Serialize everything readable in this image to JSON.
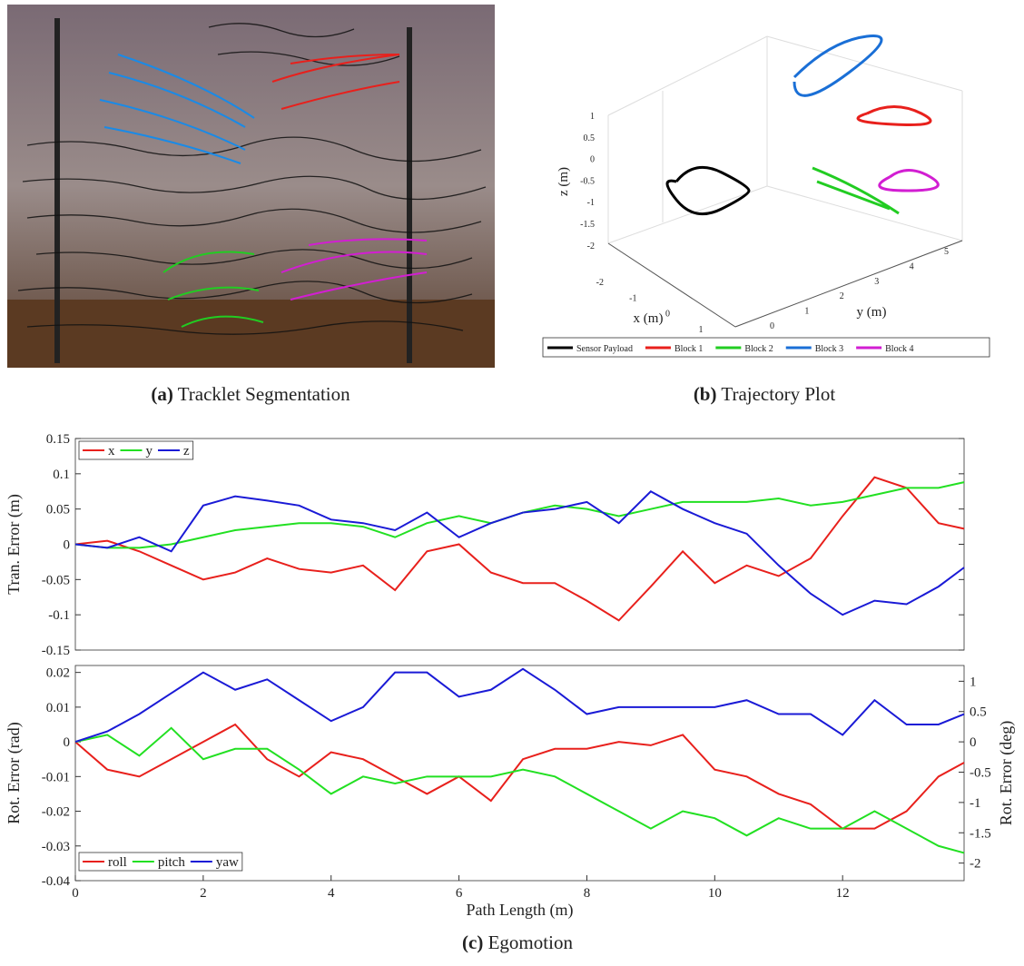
{
  "captions": [
    {
      "label": "(a)",
      "text": "Tracklet Segmentation"
    },
    {
      "label": "(b)",
      "text": "Trajectory Plot"
    },
    {
      "label": "(c)",
      "text": "Egomotion"
    }
  ],
  "chart_data": [
    {
      "type": "line3d",
      "xlabel": "x (m)",
      "ylabel": "y (m)",
      "zlabel": "z (m)",
      "xticks": [
        -2,
        -1,
        0,
        1
      ],
      "yticks": [
        0,
        1,
        2,
        3,
        4,
        5
      ],
      "zticks": [
        1,
        0.5,
        0,
        -0.5,
        -1,
        -1.5,
        -2
      ],
      "legend": "bottom",
      "series": [
        {
          "name": "Sensor Payload",
          "color": "#000000"
        },
        {
          "name": "Block 1",
          "color": "#e8201c"
        },
        {
          "name": "Block 2",
          "color": "#22cc22"
        },
        {
          "name": "Block 3",
          "color": "#1a6fd6"
        },
        {
          "name": "Block 4",
          "color": "#d21ed2"
        }
      ]
    },
    {
      "type": "line",
      "ylabel": "Tran. Error (m)",
      "legend": "upper left",
      "xlim": [
        0,
        13.9
      ],
      "ylim": [
        -0.15,
        0.15
      ],
      "yticks": [
        -0.15,
        -0.1,
        -0.05,
        0,
        0.05,
        0.1,
        0.15
      ],
      "x": [
        0,
        0.5,
        1,
        1.5,
        2,
        2.5,
        3,
        3.5,
        4,
        4.5,
        5,
        5.5,
        6,
        6.5,
        7,
        7.5,
        8,
        8.5,
        9,
        9.5,
        10,
        10.5,
        11,
        11.5,
        12,
        12.5,
        13,
        13.5,
        13.9
      ],
      "series": [
        {
          "name": "x",
          "color": "#e8201c",
          "values": [
            0,
            0.005,
            -0.01,
            -0.03,
            -0.05,
            -0.04,
            -0.02,
            -0.035,
            -0.04,
            -0.03,
            -0.065,
            -0.01,
            0.0,
            -0.04,
            -0.055,
            -0.055,
            -0.08,
            -0.108,
            -0.06,
            -0.01,
            -0.055,
            -0.03,
            -0.045,
            -0.02,
            0.04,
            0.095,
            0.08,
            0.03,
            0.022
          ]
        },
        {
          "name": "y",
          "color": "#22e022",
          "values": [
            0,
            -0.005,
            -0.005,
            0.0,
            0.01,
            0.02,
            0.025,
            0.03,
            0.03,
            0.025,
            0.01,
            0.03,
            0.04,
            0.03,
            0.045,
            0.055,
            0.05,
            0.04,
            0.05,
            0.06,
            0.06,
            0.06,
            0.065,
            0.055,
            0.06,
            0.07,
            0.08,
            0.08,
            0.088
          ]
        },
        {
          "name": "z",
          "color": "#1a1ad6",
          "values": [
            0,
            -0.005,
            0.01,
            -0.01,
            0.055,
            0.068,
            0.062,
            0.055,
            0.035,
            0.03,
            0.02,
            0.045,
            0.01,
            0.03,
            0.045,
            0.05,
            0.06,
            0.03,
            0.075,
            0.05,
            0.03,
            0.015,
            -0.03,
            -0.07,
            -0.1,
            -0.08,
            -0.085,
            -0.06,
            -0.033
          ]
        }
      ]
    },
    {
      "type": "line",
      "xlabel": "Path Length (m)",
      "ylabel": "Rot. Error (rad)",
      "y2label": "Rot. Error (deg)",
      "legend": "lower left",
      "xlim": [
        0,
        13.9
      ],
      "xticks": [
        0,
        2,
        4,
        6,
        8,
        10,
        12
      ],
      "ylim": [
        -0.04,
        0.022
      ],
      "yticks": [
        -0.04,
        -0.03,
        -0.02,
        -0.01,
        0,
        0.01,
        0.02
      ],
      "y2lim": [
        -2.29,
        1.26
      ],
      "y2ticks": [
        -2,
        -1.5,
        -1,
        -0.5,
        0,
        0.5,
        1
      ],
      "x": [
        0,
        0.5,
        1,
        1.5,
        2,
        2.5,
        3,
        3.5,
        4,
        4.5,
        5,
        5.5,
        6,
        6.5,
        7,
        7.5,
        8,
        8.5,
        9,
        9.5,
        10,
        10.5,
        11,
        11.5,
        12,
        12.5,
        13,
        13.5,
        13.9
      ],
      "series": [
        {
          "name": "roll",
          "color": "#e8201c",
          "values": [
            0,
            -0.008,
            -0.01,
            -0.005,
            0.0,
            0.005,
            -0.005,
            -0.01,
            -0.003,
            -0.005,
            -0.01,
            -0.015,
            -0.01,
            -0.017,
            -0.005,
            -0.002,
            -0.002,
            0.0,
            -0.001,
            0.002,
            -0.008,
            -0.01,
            -0.015,
            -0.018,
            -0.025,
            -0.025,
            -0.02,
            -0.01,
            -0.006
          ]
        },
        {
          "name": "pitch",
          "color": "#22e022",
          "values": [
            0,
            0.002,
            -0.004,
            0.004,
            -0.005,
            -0.002,
            -0.002,
            -0.008,
            -0.015,
            -0.01,
            -0.012,
            -0.01,
            -0.01,
            -0.01,
            -0.008,
            -0.01,
            -0.015,
            -0.02,
            -0.025,
            -0.02,
            -0.022,
            -0.027,
            -0.022,
            -0.025,
            -0.025,
            -0.02,
            -0.025,
            -0.03,
            -0.032
          ]
        },
        {
          "name": "yaw",
          "color": "#1a1ad6",
          "values": [
            0,
            0.003,
            0.008,
            0.014,
            0.02,
            0.015,
            0.018,
            0.012,
            0.006,
            0.01,
            0.02,
            0.02,
            0.013,
            0.015,
            0.021,
            0.015,
            0.008,
            0.01,
            0.01,
            0.01,
            0.01,
            0.012,
            0.008,
            0.008,
            0.002,
            0.012,
            0.005,
            0.005,
            0.008
          ]
        }
      ]
    }
  ]
}
